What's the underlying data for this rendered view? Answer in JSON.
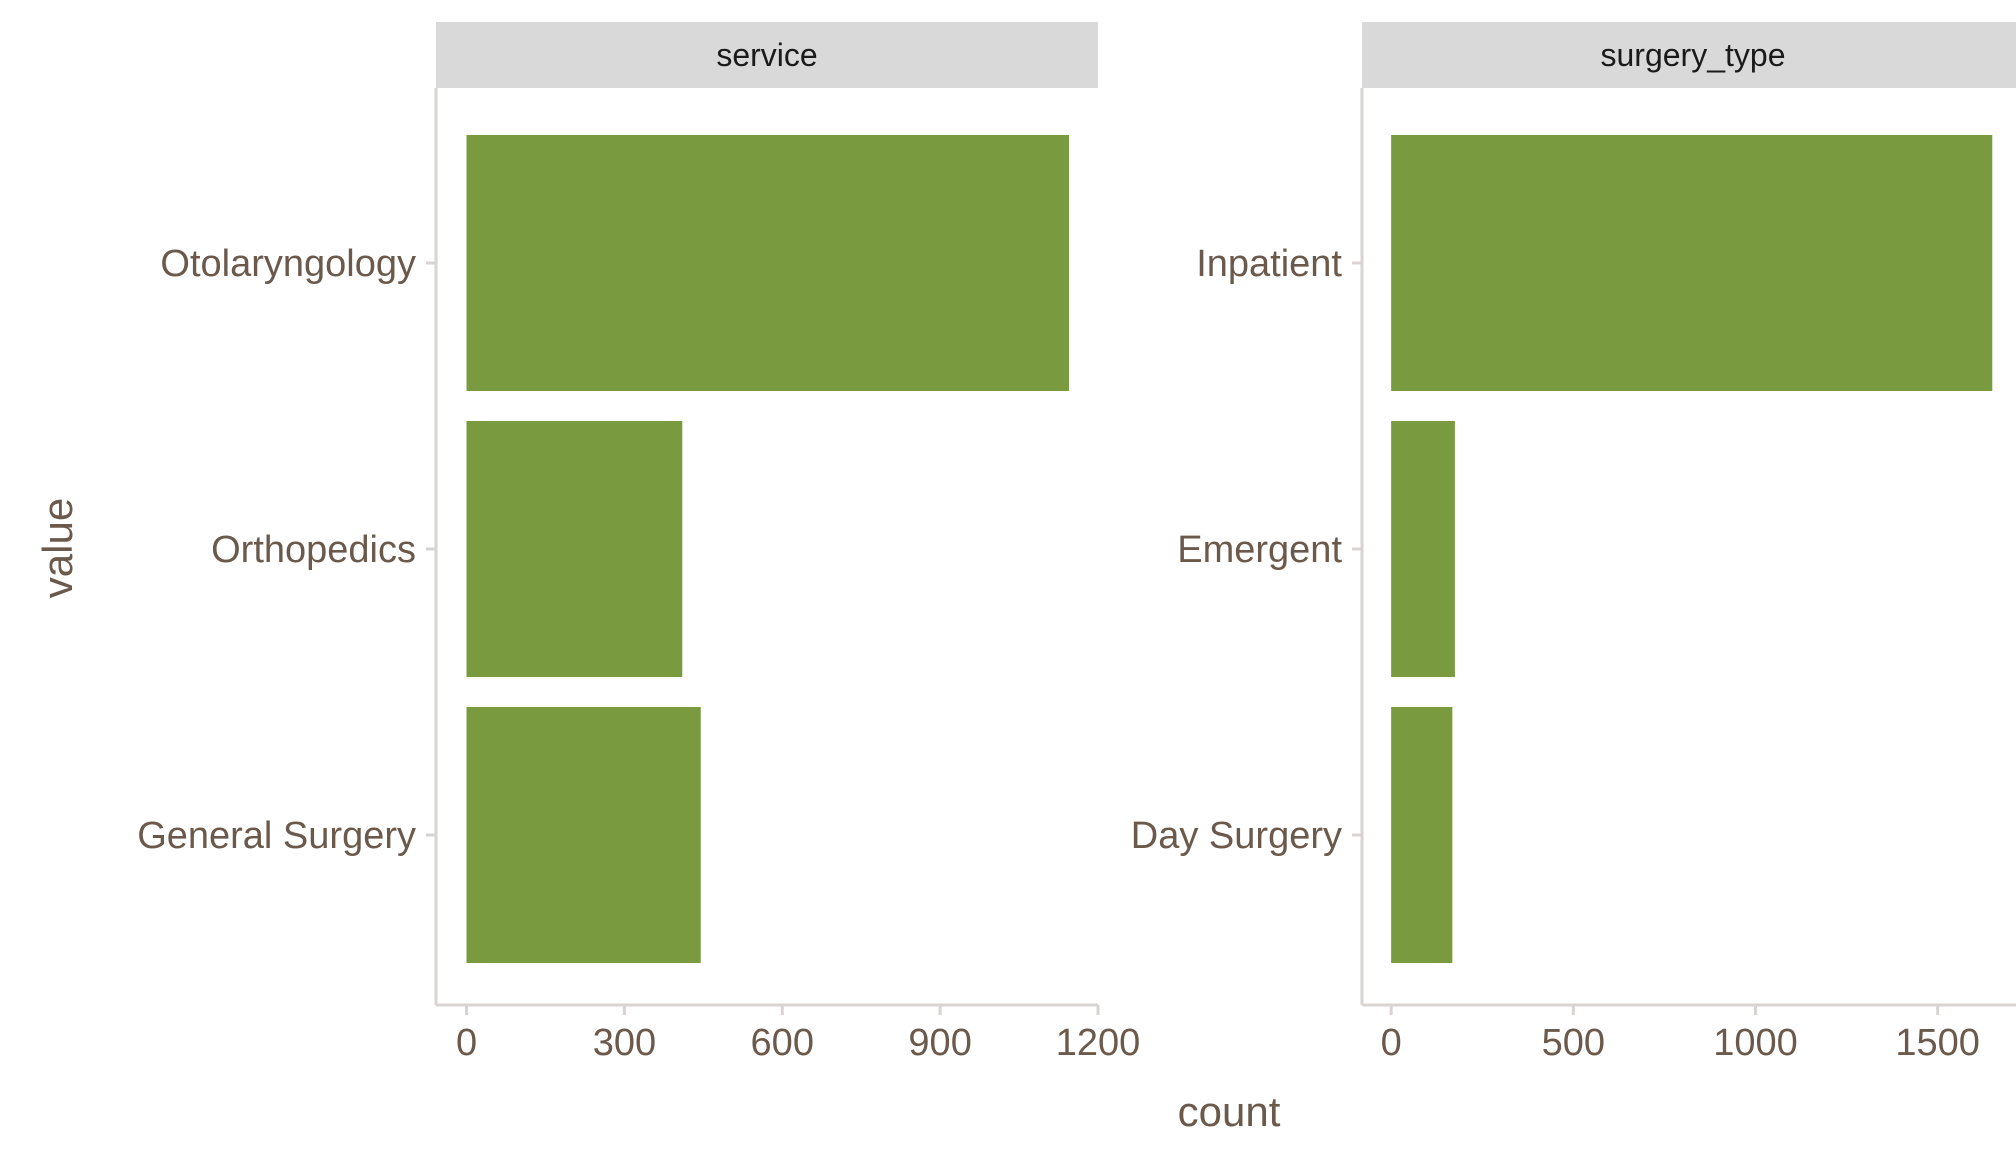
{
  "chart_data": {
    "type": "bar",
    "orientation": "horizontal",
    "xlabel": "count",
    "ylabel": "value",
    "colors": {
      "bar": "#7a9a3f",
      "strip_bg": "#d9d9d9",
      "axis_line": "#d9d4d1",
      "text": "#6b5a4c"
    },
    "facets": [
      {
        "name": "service",
        "categories": [
          "Otolaryngology",
          "Orthopedics",
          "General Surgery"
        ],
        "values": [
          1145,
          410,
          445
        ],
        "xlim": [
          -58,
          1200
        ],
        "xticks": [
          0,
          300,
          600,
          900,
          1200
        ]
      },
      {
        "name": "surgery_type",
        "categories": [
          "Inpatient",
          "Emergent",
          "Day Surgery"
        ],
        "values": [
          1650,
          175,
          168
        ],
        "xlim": [
          -80,
          1737
        ],
        "xticks": [
          0,
          500,
          1000,
          1500
        ]
      }
    ]
  }
}
